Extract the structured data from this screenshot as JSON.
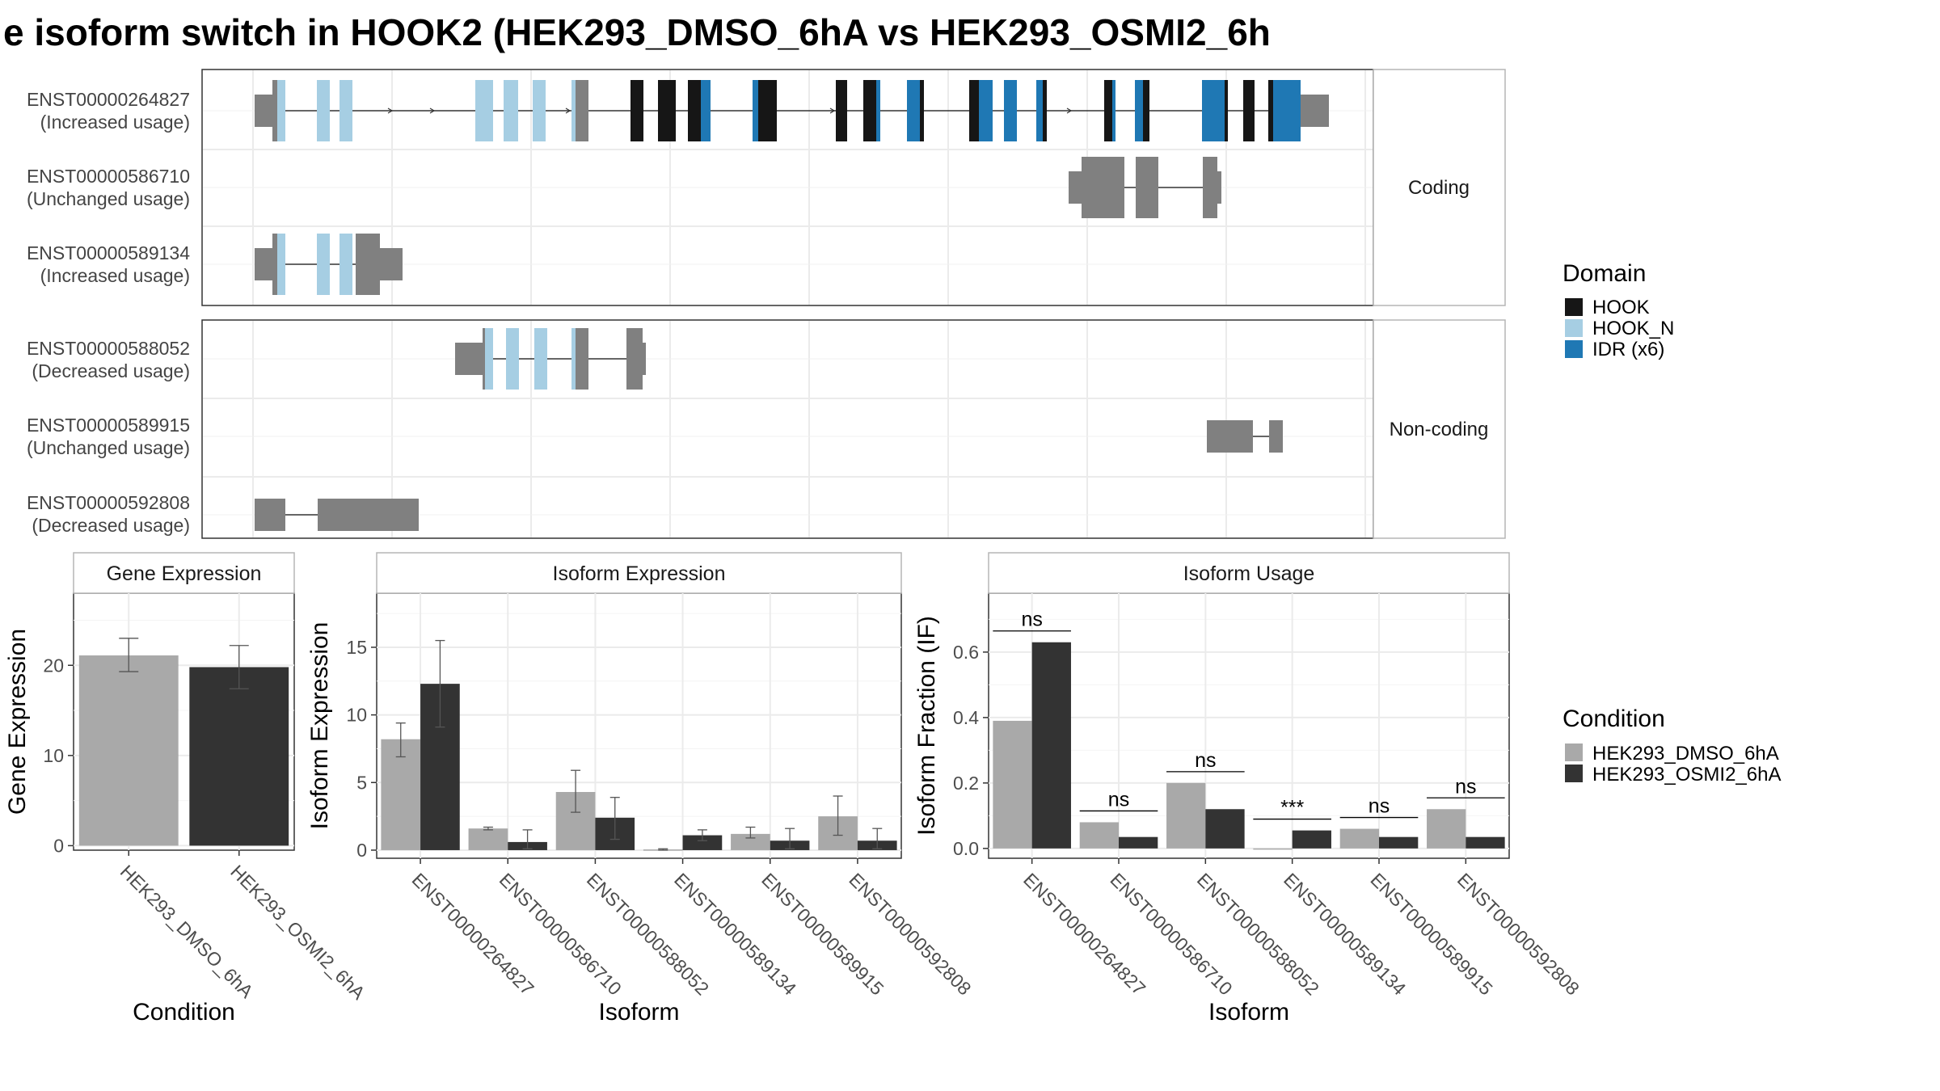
{
  "title": "e isoform switch in HOOK2 (HEK293_DMSO_6hA vs HEK293_OSMI2_6h",
  "colors": {
    "HOOK": "#161616",
    "HOOK_N": "#a6cee3",
    "IDR": "#1f78b4",
    "noncoding_exon": "#808080",
    "dmso": "#a9a9a9",
    "osmi": "#333333"
  },
  "structure_panel": {
    "coding_strip": "Coding",
    "noncoding_strip": "Non-coding",
    "transcripts_coding": [
      {
        "id": "ENST00000264827",
        "usage": "(Increased usage)"
      },
      {
        "id": "ENST00000586710",
        "usage": "(Unchanged usage)"
      },
      {
        "id": "ENST00000589134",
        "usage": "(Increased usage)"
      }
    ],
    "transcripts_noncoding": [
      {
        "id": "ENST00000588052",
        "usage": "(Decreased usage)"
      },
      {
        "id": "ENST00000589915",
        "usage": "(Unchanged usage)"
      },
      {
        "id": "ENST00000592808",
        "usage": "(Decreased usage)"
      }
    ]
  },
  "legend_domain": {
    "title": "Domain",
    "items": [
      {
        "label": "HOOK",
        "color": "#161616"
      },
      {
        "label": "HOOK_N",
        "color": "#a6cee3"
      },
      {
        "label": "IDR (x6)",
        "color": "#1f78b4"
      }
    ]
  },
  "legend_condition": {
    "title": "Condition",
    "items": [
      {
        "label": "HEK293_DMSO_6hA",
        "color": "#a9a9a9"
      },
      {
        "label": "HEK293_OSMI2_6hA",
        "color": "#333333"
      }
    ]
  },
  "chart_data": [
    {
      "type": "bar",
      "title": "Gene Expression",
      "xlabel": "Condition",
      "ylabel": "Gene Expression",
      "categories": [
        "HEK293_DMSO_6hA",
        "HEK293_OSMI2_6hA"
      ],
      "values": [
        21.1,
        19.8
      ],
      "error_low": [
        19.3,
        17.4
      ],
      "error_high": [
        23.0,
        22.2
      ],
      "ylim": [
        -0.5,
        28
      ],
      "yticks": [
        0,
        10,
        20
      ]
    },
    {
      "type": "bar",
      "title": "Isoform Expression",
      "xlabel": "Isoform",
      "ylabel": "Isoform Expression",
      "categories": [
        "ENST00000264827",
        "ENST00000586710",
        "ENST00000588052",
        "ENST00000589134",
        "ENST00000589915",
        "ENST00000592808"
      ],
      "series": [
        {
          "name": "HEK293_DMSO_6hA",
          "values": [
            8.2,
            1.6,
            4.3,
            0.05,
            1.2,
            2.5
          ],
          "error_low": [
            6.9,
            1.5,
            2.8,
            0.0,
            0.9,
            1.1
          ],
          "error_high": [
            9.4,
            1.7,
            5.9,
            0.1,
            1.7,
            4.0
          ]
        },
        {
          "name": "HEK293_OSMI2_6hA",
          "values": [
            12.3,
            0.6,
            2.4,
            1.1,
            0.7,
            0.7
          ],
          "error_low": [
            9.1,
            0.1,
            0.8,
            0.7,
            0.1,
            0.1
          ],
          "error_high": [
            15.5,
            1.5,
            3.9,
            1.5,
            1.6,
            1.6
          ]
        }
      ],
      "ylim": [
        -0.6,
        19
      ],
      "yticks": [
        0,
        5,
        10,
        15
      ]
    },
    {
      "type": "bar",
      "title": "Isoform Usage",
      "xlabel": "Isoform",
      "ylabel": "Isoform Fraction (IF)",
      "categories": [
        "ENST00000264827",
        "ENST00000586710",
        "ENST00000588052",
        "ENST00000589134",
        "ENST00000589915",
        "ENST00000592808"
      ],
      "series": [
        {
          "name": "HEK293_DMSO_6hA",
          "values": [
            0.39,
            0.08,
            0.2,
            0.0,
            0.06,
            0.12
          ]
        },
        {
          "name": "HEK293_OSMI2_6hA",
          "values": [
            0.63,
            0.035,
            0.12,
            0.055,
            0.035,
            0.035
          ]
        }
      ],
      "annotations": [
        "ns",
        "ns",
        "ns",
        "***",
        "ns",
        "ns"
      ],
      "ylim": [
        -0.03,
        0.78
      ],
      "yticks": [
        "0.0",
        "0.2",
        "0.4",
        "0.6"
      ]
    }
  ]
}
